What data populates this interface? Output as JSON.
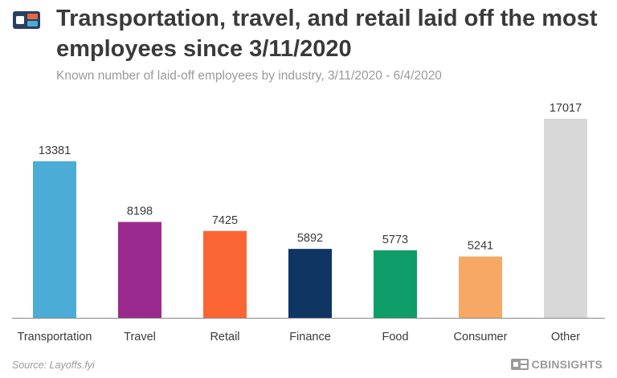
{
  "header": {
    "title": "Transportation, travel, and retail laid off the most employees since 3/11/2020",
    "subtitle": "Known number of laid-off employees by industry, 3/11/2020 - 6/4/2020"
  },
  "footer": {
    "source": "Source: Layoffs.fyi",
    "brand": "CBINSIGHTS"
  },
  "colors": {
    "Transportation": "#4bacd6",
    "Travel": "#9b2a8e",
    "Retail": "#fb6534",
    "Finance": "#0f3563",
    "Food": "#0f9d6a",
    "Consumer": "#f7a864",
    "Other": "#d8d8d8",
    "axis": "#888888",
    "text": "#3a3a3a"
  },
  "chart_data": {
    "type": "bar",
    "categories": [
      "Transportation",
      "Travel",
      "Retail",
      "Finance",
      "Food",
      "Consumer",
      "Other"
    ],
    "values": [
      13381,
      8198,
      7425,
      5892,
      5773,
      5241,
      17017
    ],
    "title": "Transportation, travel, and retail laid off the most employees since 3/11/2020",
    "subtitle": "Known number of laid-off employees by industry, 3/11/2020 - 6/4/2020",
    "xlabel": "",
    "ylabel": "",
    "ylim": [
      0,
      17017
    ],
    "grid": false,
    "data_labels": true
  }
}
